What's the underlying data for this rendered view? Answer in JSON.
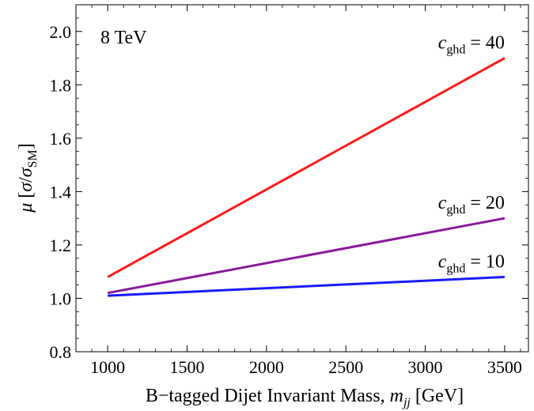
{
  "chart_data": {
    "type": "line",
    "title": "",
    "annotation": "8 TeV",
    "xlabel": {
      "main": "B−tagged Dijet Invariant Mass,",
      "var": "m",
      "sub": "jj",
      "unit": "[GeV]"
    },
    "ylabel": {
      "mu": "μ",
      "open": "[",
      "sigma": "σ",
      "slash": "/",
      "sigma2": "σ",
      "sub": "SM",
      "close": "]"
    },
    "xlim": [
      800,
      3650
    ],
    "ylim": [
      0.8,
      2.1
    ],
    "xticks": [
      1000,
      1500,
      2000,
      2500,
      3000,
      3500
    ],
    "yticks": [
      0.8,
      1.0,
      1.2,
      1.4,
      1.6,
      1.8,
      2.0
    ],
    "xtick_labels": [
      "1000",
      "1500",
      "2000",
      "2500",
      "3000",
      "3500"
    ],
    "ytick_labels": [
      "0.8",
      "1.0",
      "1.2",
      "1.4",
      "1.6",
      "1.8",
      "2.0"
    ],
    "series": [
      {
        "name": "c_ghd = 40",
        "label": {
          "var": "c",
          "sub": "ghd",
          "rest": " = 40"
        },
        "color": "#ff1a1a",
        "x": [
          1000,
          3500
        ],
        "y": [
          1.08,
          1.9
        ]
      },
      {
        "name": "c_ghd = 20",
        "label": {
          "var": "c",
          "sub": "ghd",
          "rest": " = 20"
        },
        "color": "#8a1a9b",
        "x": [
          1000,
          3500
        ],
        "y": [
          1.02,
          1.3
        ]
      },
      {
        "name": "c_ghd = 10",
        "label": {
          "var": "c",
          "sub": "ghd",
          "rest": " = 10"
        },
        "color": "#1a1aff",
        "x": [
          1000,
          3500
        ],
        "y": [
          1.01,
          1.08
        ]
      }
    ]
  }
}
